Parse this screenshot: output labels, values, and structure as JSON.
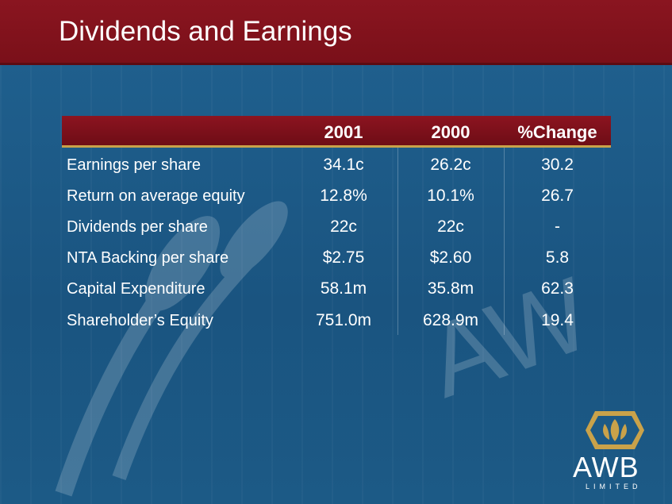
{
  "slide": {
    "title": "Dividends and Earnings"
  },
  "table": {
    "headers": [
      "2001",
      "2000",
      "%Change"
    ],
    "rows": [
      {
        "label": "Earnings per share",
        "values": [
          "34.1c",
          "26.2c",
          "30.2"
        ]
      },
      {
        "label": "Return on average equity",
        "values": [
          "12.8%",
          "10.1%",
          "26.7"
        ]
      },
      {
        "label": "Dividends per share",
        "values": [
          "22c",
          "22c",
          "-"
        ]
      },
      {
        "label": "NTA Backing per share",
        "values": [
          "$2.75",
          "$2.60",
          "5.8"
        ]
      },
      {
        "label": "Capital Expenditure",
        "values": [
          "58.1m",
          "35.8m",
          "62.3"
        ]
      },
      {
        "label": "Shareholder’s Equity",
        "values": [
          "751.0m",
          "628.9m",
          "19.4"
        ]
      }
    ]
  },
  "logo": {
    "name": "AWB",
    "subtitle": "LIMITED",
    "icon": "wheat-shield-icon"
  },
  "colors": {
    "header": "#7a1019",
    "background": "#1d5a86",
    "accent": "#c9a24a"
  }
}
